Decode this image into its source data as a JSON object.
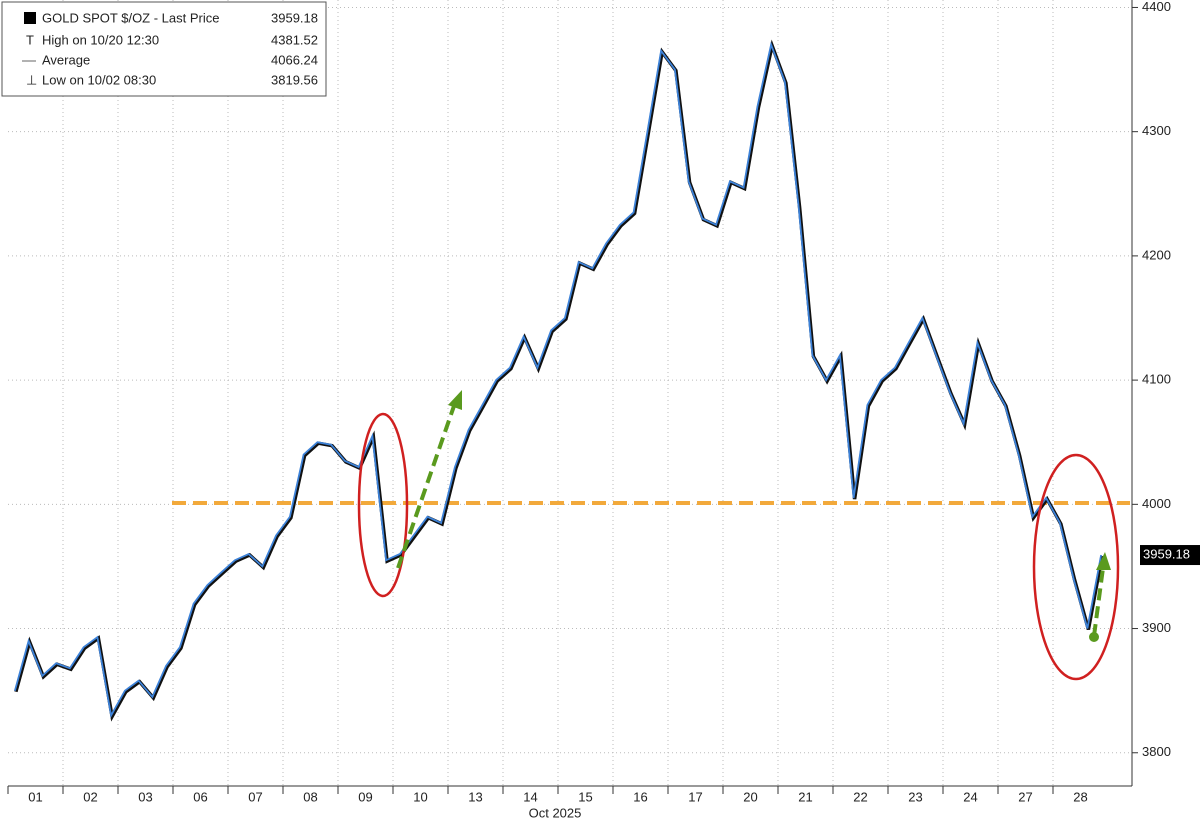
{
  "chart_data": {
    "type": "line",
    "legend": [
      {
        "label": "GOLD SPOT $/OZ - Last Price",
        "value": 3959.18
      },
      {
        "label": "High on 10/20 12:30",
        "value": 4381.52
      },
      {
        "label": "Average",
        "value": 4066.24
      },
      {
        "label": "Low on 10/02 08:30",
        "value": 3819.56
      }
    ],
    "x_label": "Oct 2025",
    "categories": [
      "01",
      "02",
      "03",
      "06",
      "07",
      "08",
      "09",
      "10",
      "13",
      "14",
      "15",
      "16",
      "17",
      "20",
      "21",
      "22",
      "23",
      "24",
      "27",
      "28"
    ],
    "series": [
      {
        "name": "GOLD SPOT $/OZ",
        "color": "#3d82d8",
        "values": [
          [
            3850,
            3890,
            3862,
            3872
          ],
          [
            3868,
            3885,
            3893,
            3830
          ],
          [
            3850,
            3858,
            3845,
            3870
          ],
          [
            3885,
            3920,
            3935,
            3945
          ],
          [
            3955,
            3960,
            3950,
            3975
          ],
          [
            3990,
            4040,
            4050,
            4048
          ],
          [
            4035,
            4030,
            4055,
            3955
          ],
          [
            3960,
            3975,
            3990,
            3985
          ],
          [
            4030,
            4060,
            4080,
            4100
          ],
          [
            4110,
            4135,
            4110,
            4140
          ],
          [
            4150,
            4195,
            4190,
            4210
          ],
          [
            4225,
            4235,
            4300,
            4365
          ],
          [
            4350,
            4260,
            4230,
            4225
          ],
          [
            4260,
            4255,
            4320,
            4370
          ],
          [
            4340,
            4240,
            4120,
            4100
          ],
          [
            4120,
            4005,
            4080,
            4100
          ],
          [
            4110,
            4130,
            4150,
            4120
          ],
          [
            4090,
            4065,
            4130,
            4100
          ],
          [
            4080,
            4040,
            3990,
            4005
          ],
          [
            3985,
            3940,
            3900,
            3959.18
          ]
        ]
      }
    ],
    "ylim": [
      3766,
      4406
    ],
    "yticks": [
      3800,
      3900,
      4000,
      4100,
      4200,
      4300,
      4400
    ],
    "grid": true
  }
}
